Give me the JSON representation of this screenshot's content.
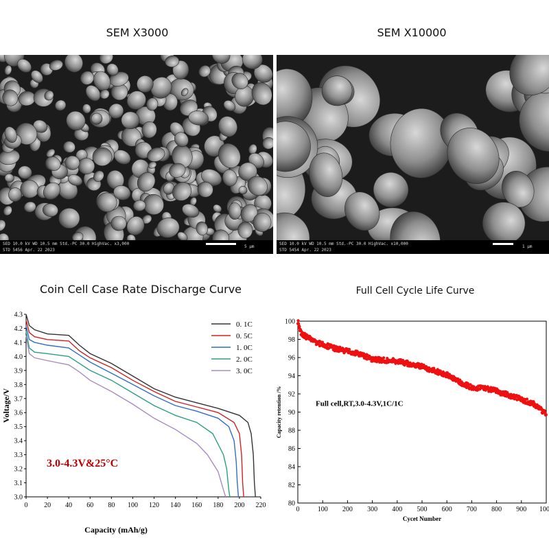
{
  "titles": {
    "sem_left": "SEM X3000",
    "sem_right": "SEM X10000",
    "rate_chart": "Coin Cell Case Rate Discharge Curve",
    "cycle_chart": "Full Cell Cycle Life Curve"
  },
  "sem_left_bar": {
    "line1": "SED   10.0 kV  WD 10.5 mm   Std.-PC 30.0   HighVac.   x3,000",
    "line2": "STD   5456   Apr. 22 2023",
    "scale": "5 µm"
  },
  "sem_right_bar": {
    "line1": "SED   10.0 kV  WD 10.5 mm   Std.-PC 30.0   HighVac.   x10,000",
    "line2": "STD   5454   Apr. 22 2023",
    "scale": "1 µm"
  },
  "chart_data": [
    {
      "type": "line",
      "xlabel": "Capacity (mAh/g)",
      "ylabel": "Voltage/V",
      "xlim": [
        0,
        220
      ],
      "ylim": [
        3.0,
        4.3
      ],
      "xticks": [
        0,
        20,
        40,
        60,
        80,
        100,
        120,
        140,
        160,
        180,
        200,
        220
      ],
      "yticks": [
        3.0,
        3.1,
        3.2,
        3.3,
        3.4,
        3.5,
        3.6,
        3.7,
        3.8,
        3.9,
        4.0,
        4.1,
        4.2,
        4.3
      ],
      "annotation": "3.0-4.3V&25°C",
      "annotation_color": "#c00000",
      "legend_position": "top-right",
      "series": [
        {
          "name": "0. 1C",
          "color": "#333333",
          "points": [
            [
              0,
              4.3
            ],
            [
              3,
              4.22
            ],
            [
              8,
              4.19
            ],
            [
              20,
              4.16
            ],
            [
              40,
              4.15
            ],
            [
              50,
              4.08
            ],
            [
              60,
              4.02
            ],
            [
              80,
              3.95
            ],
            [
              100,
              3.86
            ],
            [
              120,
              3.77
            ],
            [
              140,
              3.71
            ],
            [
              160,
              3.67
            ],
            [
              180,
              3.63
            ],
            [
              200,
              3.58
            ],
            [
              208,
              3.53
            ],
            [
              211,
              3.45
            ],
            [
              213,
              3.3
            ],
            [
              214,
              3.1
            ],
            [
              215,
              3.0
            ]
          ]
        },
        {
          "name": "0. 5C",
          "color": "#d42020",
          "points": [
            [
              0,
              4.26
            ],
            [
              3,
              4.17
            ],
            [
              8,
              4.14
            ],
            [
              20,
              4.12
            ],
            [
              40,
              4.11
            ],
            [
              50,
              4.04
            ],
            [
              60,
              3.99
            ],
            [
              80,
              3.92
            ],
            [
              100,
              3.83
            ],
            [
              120,
              3.75
            ],
            [
              140,
              3.68
            ],
            [
              160,
              3.64
            ],
            [
              180,
              3.6
            ],
            [
              195,
              3.53
            ],
            [
              200,
              3.45
            ],
            [
              202,
              3.3
            ],
            [
              203,
              3.1
            ],
            [
              204,
              3.0
            ]
          ]
        },
        {
          "name": "1. 0C",
          "color": "#2f6fc4",
          "points": [
            [
              0,
              4.22
            ],
            [
              3,
              4.12
            ],
            [
              8,
              4.1
            ],
            [
              20,
              4.08
            ],
            [
              40,
              4.06
            ],
            [
              50,
              4.01
            ],
            [
              60,
              3.96
            ],
            [
              80,
              3.88
            ],
            [
              100,
              3.8
            ],
            [
              120,
              3.72
            ],
            [
              140,
              3.65
            ],
            [
              160,
              3.61
            ],
            [
              180,
              3.56
            ],
            [
              190,
              3.5
            ],
            [
              195,
              3.4
            ],
            [
              197,
              3.25
            ],
            [
              198,
              3.1
            ],
            [
              199,
              3.0
            ]
          ]
        },
        {
          "name": "2. 0C",
          "color": "#2a9f7f",
          "points": [
            [
              0,
              4.18
            ],
            [
              3,
              4.06
            ],
            [
              8,
              4.03
            ],
            [
              20,
              4.02
            ],
            [
              40,
              4.0
            ],
            [
              50,
              3.95
            ],
            [
              60,
              3.9
            ],
            [
              80,
              3.83
            ],
            [
              100,
              3.74
            ],
            [
              120,
              3.65
            ],
            [
              140,
              3.58
            ],
            [
              160,
              3.53
            ],
            [
              175,
              3.45
            ],
            [
              185,
              3.3
            ],
            [
              188,
              3.2
            ],
            [
              190,
              3.05
            ],
            [
              191,
              3.0
            ]
          ]
        },
        {
          "name": "3. 0C",
          "color": "#a78bc2",
          "points": [
            [
              0,
              4.15
            ],
            [
              3,
              4.02
            ],
            [
              8,
              3.99
            ],
            [
              20,
              3.97
            ],
            [
              40,
              3.94
            ],
            [
              50,
              3.89
            ],
            [
              60,
              3.83
            ],
            [
              80,
              3.75
            ],
            [
              100,
              3.66
            ],
            [
              120,
              3.56
            ],
            [
              140,
              3.48
            ],
            [
              160,
              3.38
            ],
            [
              170,
              3.3
            ],
            [
              180,
              3.18
            ],
            [
              185,
              3.05
            ],
            [
              187,
              3.0
            ]
          ]
        }
      ]
    },
    {
      "type": "scatter",
      "xlabel": "Cycet Number",
      "ylabel": "Capacity retention /%",
      "xlim": [
        0,
        1000
      ],
      "ylim": [
        80,
        100
      ],
      "xticks": [
        0,
        100,
        200,
        300,
        400,
        500,
        600,
        700,
        800,
        900,
        1000
      ],
      "yticks": [
        80,
        82,
        84,
        86,
        88,
        90,
        92,
        94,
        96,
        98,
        100
      ],
      "annotation": "Full cell,RT,3.0-4.3V,1C/1C",
      "color": "#ee1111",
      "trend": [
        [
          0,
          100.0
        ],
        [
          5,
          99.3
        ],
        [
          15,
          98.6
        ],
        [
          40,
          98.2
        ],
        [
          80,
          97.6
        ],
        [
          150,
          97.0
        ],
        [
          250,
          96.4
        ],
        [
          300,
          95.8
        ],
        [
          400,
          95.6
        ],
        [
          500,
          95.0
        ],
        [
          600,
          94.1
        ],
        [
          650,
          93.3
        ],
        [
          700,
          92.7
        ],
        [
          760,
          92.6
        ],
        [
          800,
          92.3
        ],
        [
          900,
          91.4
        ],
        [
          950,
          90.9
        ],
        [
          1000,
          89.8
        ]
      ]
    }
  ]
}
